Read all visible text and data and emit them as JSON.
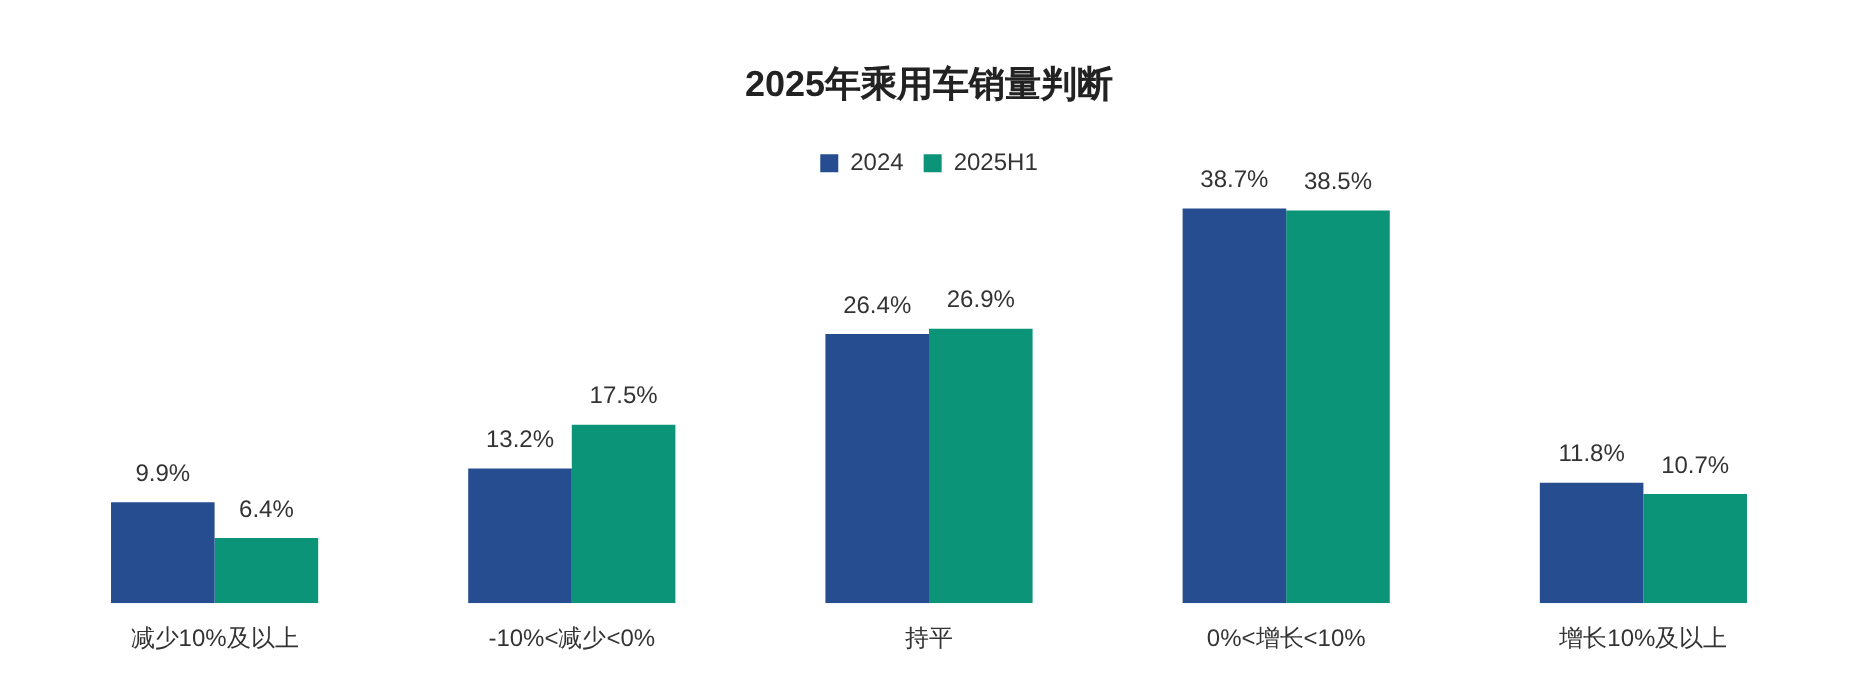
{
  "chart_data": {
    "type": "bar",
    "title": "2025年乘用车销量判断",
    "categories": [
      "减少10%及以上",
      "-10%<减少<0%",
      "持平",
      "0%<增长<10%",
      "增长10%及以上"
    ],
    "series": [
      {
        "name": "2024",
        "color": "#264d8f",
        "values": [
          9.9,
          13.2,
          26.4,
          38.7,
          11.8
        ],
        "value_labels": [
          "9.9%",
          "13.2%",
          "26.4%",
          "38.7%",
          "11.8%"
        ]
      },
      {
        "name": "2025H1",
        "color": "#0c9478",
        "values": [
          6.4,
          17.5,
          26.9,
          38.5,
          10.7
        ],
        "value_labels": [
          "6.4%",
          "17.5%",
          "26.9%",
          "38.5%",
          "10.7%"
        ]
      }
    ],
    "legend": "top",
    "grid": false,
    "tick_labels": "x"
  }
}
